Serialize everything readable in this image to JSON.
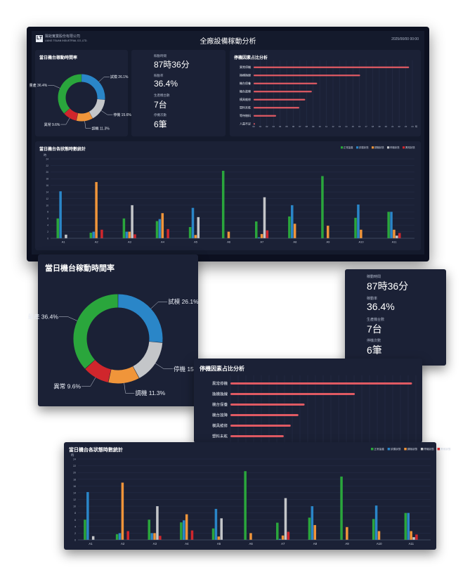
{
  "header": {
    "company_line1": "陽銓實業股份有限公司",
    "company_line2": "LIANG TSUAN INDUSTRIAL CO.,LTD.",
    "title": "全廠設備稼動分析",
    "datetime": "2025/00/00 00:00"
  },
  "kpi": {
    "items": [
      {
        "label": "稼動時間",
        "value": "87時36分"
      },
      {
        "label": "稼動率",
        "value": "36.4%"
      },
      {
        "label": "生產機台數",
        "value": "7台"
      },
      {
        "label": "停機次數",
        "value": "6筆"
      }
    ]
  },
  "donut": {
    "title": "當日機台稼動時間率",
    "slices": [
      {
        "label": "試模",
        "value": 26.1,
        "text": "試模 26.1%",
        "color": "#2a86c8"
      },
      {
        "label": "停機",
        "value": 15.6,
        "text": "停機 15.6%",
        "color": "#c4c6c9"
      },
      {
        "label": "調機",
        "value": 11.3,
        "text": "調機 11.3%",
        "color": "#f0953a"
      },
      {
        "label": "異常",
        "value": 9.6,
        "text": "異常 9.6%",
        "color": "#d0262c"
      },
      {
        "label": "量產",
        "value": 36.4,
        "text": "量產 36.4%",
        "color": "#2aa63c"
      }
    ]
  },
  "stop": {
    "title": "停機因素占比分析",
    "items": [
      {
        "label": "異常停機",
        "value": 23.5
      },
      {
        "label": "換模換線",
        "value": 16.1
      },
      {
        "label": "機台保養",
        "value": 9.6
      },
      {
        "label": "機台故障",
        "value": 8.8
      },
      {
        "label": "模具維修",
        "value": 7.8
      },
      {
        "label": "塑料未乾",
        "value": 6.9
      },
      {
        "label": "等待物料",
        "value": 3.4
      },
      {
        "label": "人員不足",
        "value": 0.2
      }
    ],
    "ticks": [
      "00",
      "01",
      "02",
      "03",
      "04",
      "05",
      "06",
      "07",
      "08",
      "09",
      "10",
      "11",
      "12",
      "13",
      "14",
      "15",
      "16",
      "17",
      "18",
      "19",
      "20",
      "21",
      "22",
      "23",
      "24"
    ],
    "tick_suffix": "時"
  },
  "status": {
    "title": "當日機台各狀態時數統計",
    "unit": "時",
    "yticks": [
      "0",
      "2",
      "4",
      "6",
      "8",
      "10",
      "12",
      "14",
      "16",
      "18",
      "20",
      "22",
      "24"
    ],
    "legend": [
      {
        "name": "正常量產",
        "color": "#2aa63c"
      },
      {
        "name": "試模狀態",
        "color": "#2a86c8"
      },
      {
        "name": "調機狀態",
        "color": "#f0953a"
      },
      {
        "name": "停機狀態",
        "color": "#c4c6c9"
      },
      {
        "name": "異常狀態",
        "color": "#d0262c"
      }
    ]
  },
  "chart_data": [
    {
      "type": "pie",
      "title": "當日機台稼動時間率",
      "categories": [
        "量產",
        "試模",
        "停機",
        "調機",
        "異常"
      ],
      "values": [
        36.4,
        26.1,
        15.6,
        11.3,
        9.6
      ]
    },
    {
      "type": "bar",
      "title": "停機因素占比分析",
      "categories": [
        "異常停機",
        "換模換線",
        "機台保養",
        "機台故障",
        "模具維修",
        "塑料未乾",
        "等待物料",
        "人員不足"
      ],
      "values": [
        23.5,
        16.1,
        9.6,
        8.8,
        7.8,
        6.9,
        3.4,
        0.2
      ],
      "xlim": [
        0,
        24
      ]
    },
    {
      "type": "bar",
      "title": "當日機台各狀態時數統計",
      "categories": [
        "A1",
        "A2",
        "A3",
        "A4",
        "A5",
        "A6",
        "A7",
        "A8",
        "A9",
        "A10",
        "A11"
      ],
      "ylim": [
        0,
        24
      ],
      "series": [
        {
          "name": "正常量產",
          "values": [
            6.0,
            1.7,
            6.0,
            5.2,
            3.4,
            20.4,
            5.1,
            6.6,
            18.8,
            6.2,
            8.0
          ]
        },
        {
          "name": "試模狀態",
          "values": [
            14.2,
            2.0,
            2.0,
            5.8,
            9.2,
            0.0,
            0.3,
            10.0,
            0.0,
            10.2,
            8.0
          ]
        },
        {
          "name": "調機狀態",
          "values": [
            0.0,
            17.0,
            2.0,
            7.6,
            1.0,
            2.0,
            1.3,
            4.4,
            3.8,
            2.6,
            2.6
          ]
        },
        {
          "name": "停機狀態",
          "values": [
            1.1,
            0.0,
            10.0,
            0.0,
            6.4,
            0.0,
            12.4,
            0.0,
            0.0,
            0.0,
            0.8
          ]
        },
        {
          "name": "異常狀態",
          "values": [
            0.0,
            2.6,
            1.2,
            2.8,
            0.0,
            0.0,
            2.4,
            0.0,
            0.0,
            0.0,
            1.6
          ]
        }
      ]
    }
  ]
}
